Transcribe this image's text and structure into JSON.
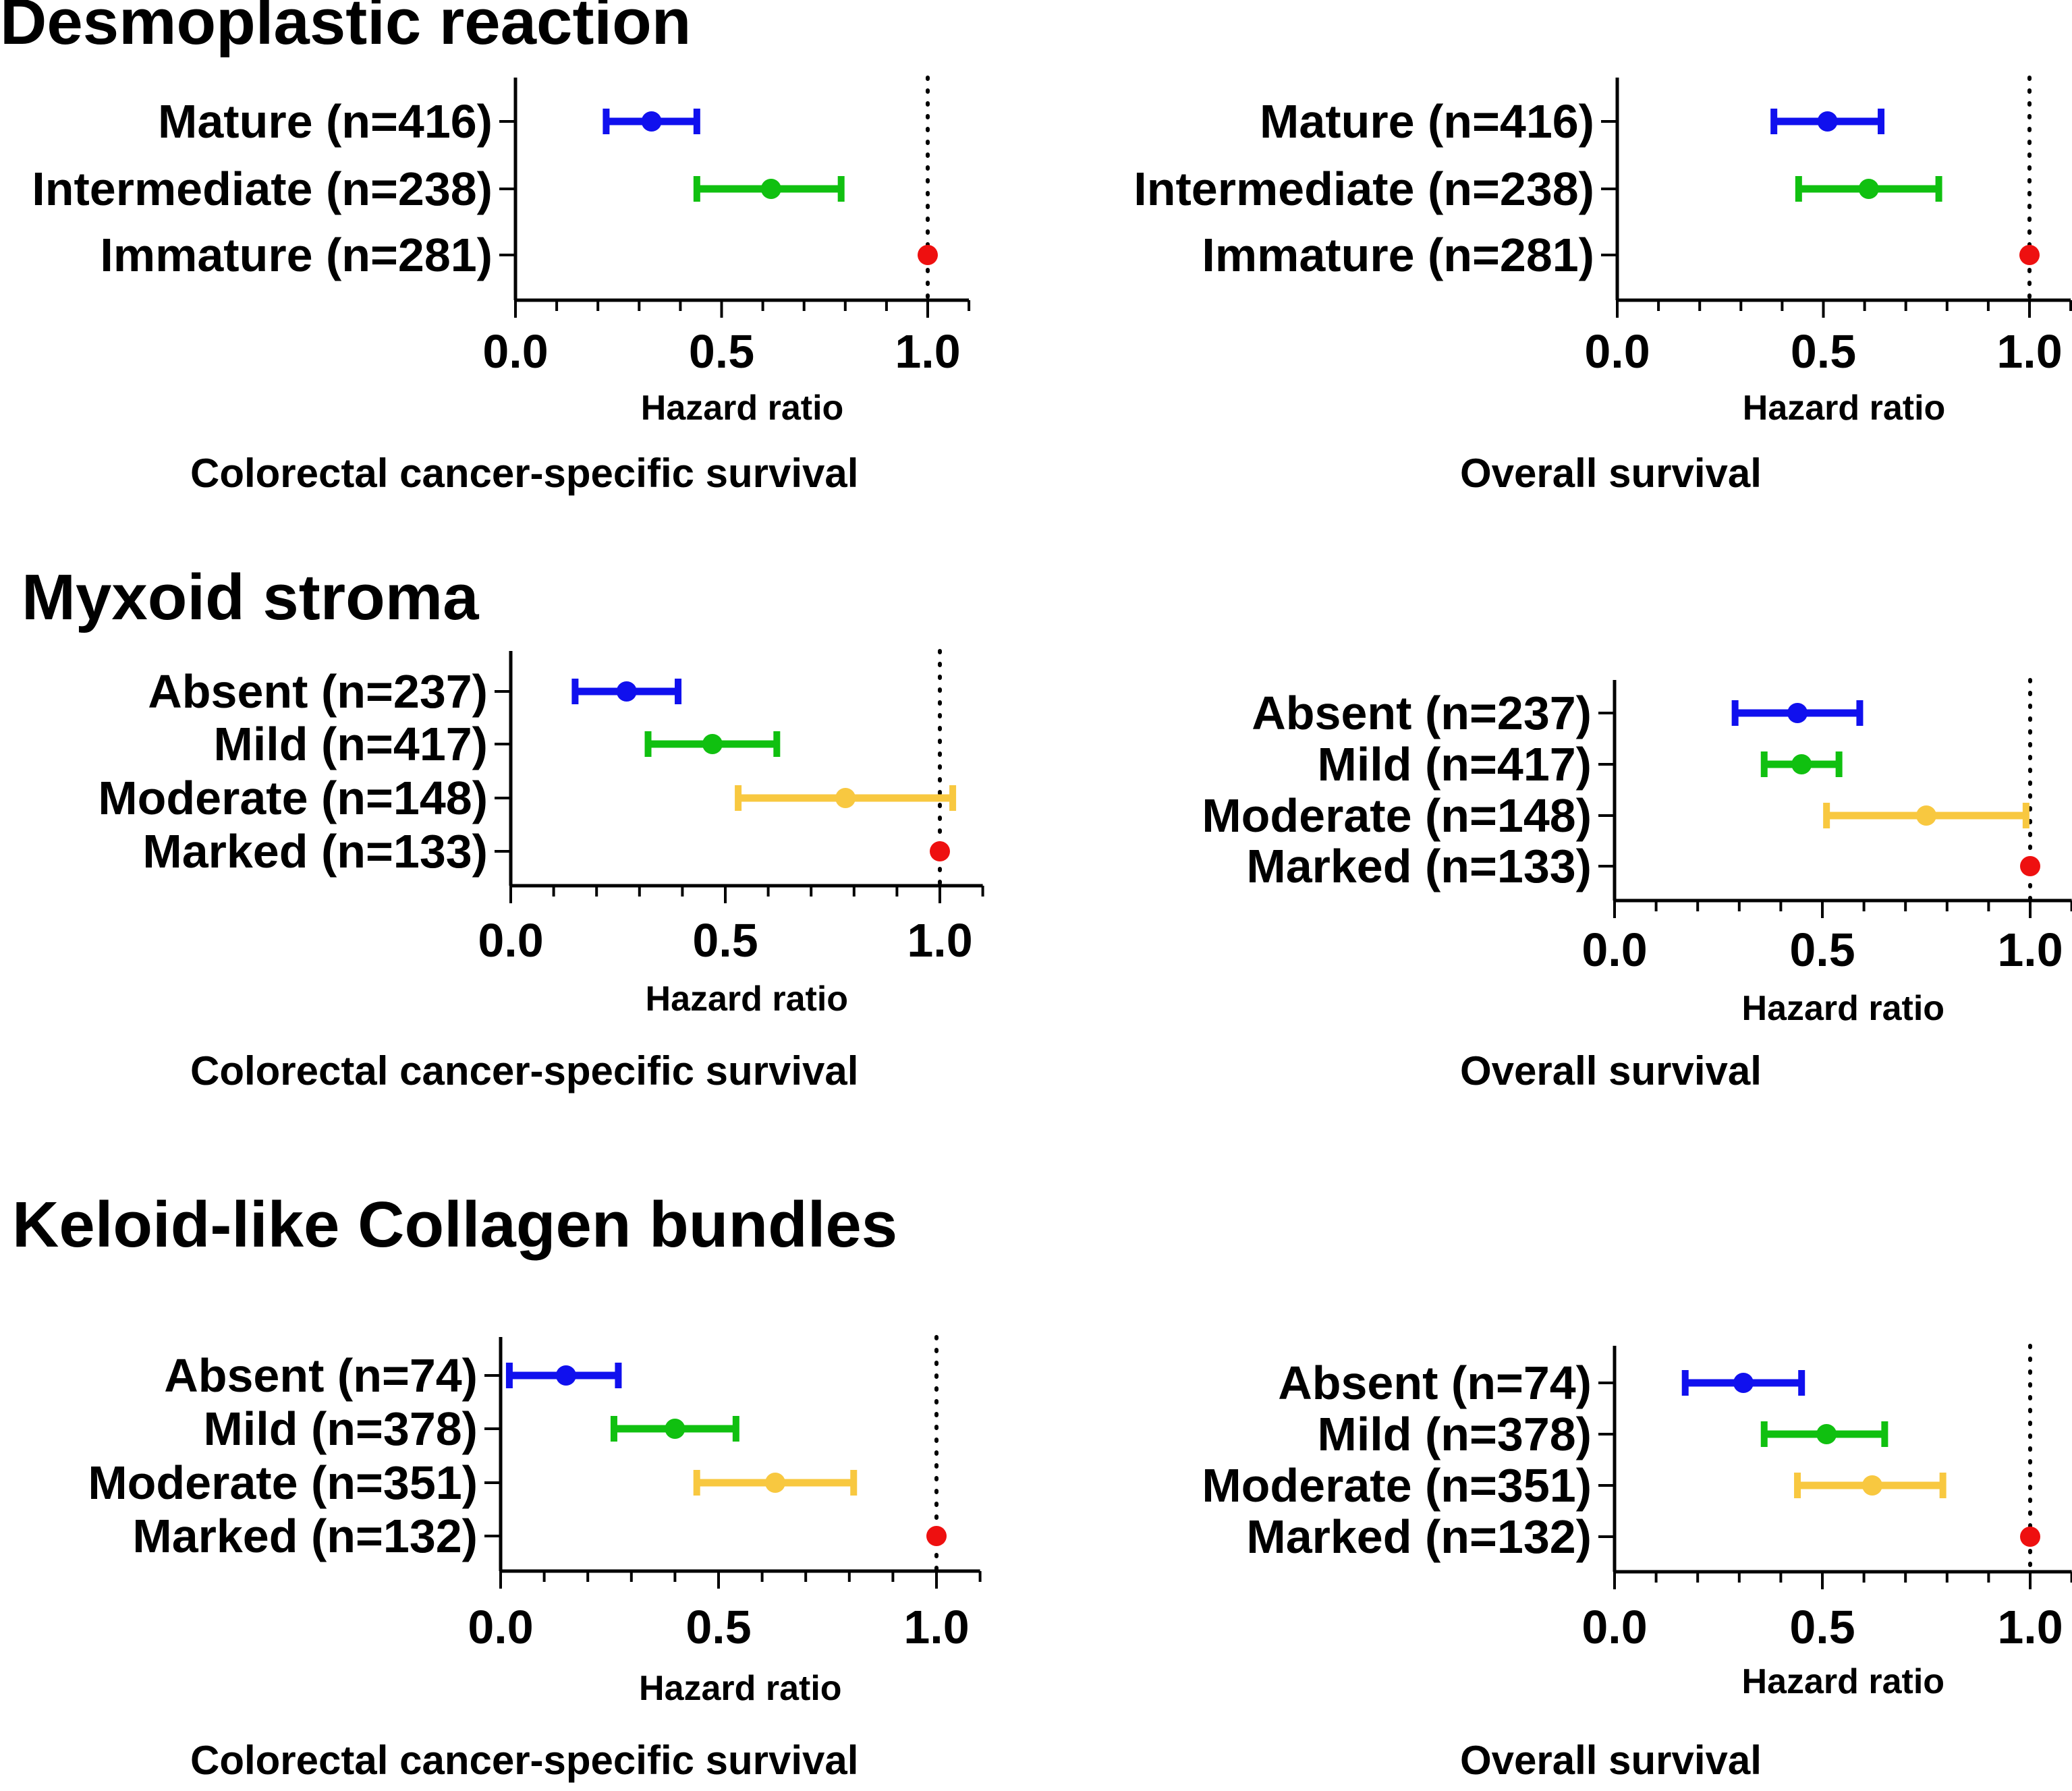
{
  "figure": {
    "colors": {
      "blue": "#1010ee",
      "green": "#10c010",
      "orange": "#f8c840",
      "red": "#ee1010"
    }
  },
  "chart_data": [
    {
      "type": "forest",
      "section_title": "Desmoplastic reaction",
      "title": "Colorectal cancer-specific survival",
      "xlabel": "Hazard ratio",
      "xlim": [
        0,
        1.1
      ],
      "xticks": [
        "0.0",
        "0.5",
        "1.0"
      ],
      "reference_line": 1.0,
      "rows": [
        {
          "label": "Mature (n=416)",
          "hr": 0.33,
          "lower": 0.22,
          "upper": 0.44,
          "color": "#1010ee"
        },
        {
          "label": "Intermediate (n=238)",
          "hr": 0.62,
          "lower": 0.44,
          "upper": 0.79,
          "color": "#10c010"
        },
        {
          "label": "Immature (n=281)",
          "hr": 1.0,
          "lower": null,
          "upper": null,
          "color": "#ee1010"
        }
      ]
    },
    {
      "type": "forest",
      "section_title": "",
      "title": "Overall survival",
      "xlabel": "Hazard ratio",
      "xlim": [
        0,
        1.1
      ],
      "xticks": [
        "0.0",
        "0.5",
        "1.0"
      ],
      "reference_line": 1.0,
      "rows": [
        {
          "label": "Mature (n=416)",
          "hr": 0.51,
          "lower": 0.38,
          "upper": 0.64,
          "color": "#1010ee"
        },
        {
          "label": "Intermediate (n=238)",
          "hr": 0.61,
          "lower": 0.44,
          "upper": 0.78,
          "color": "#10c010"
        },
        {
          "label": "Immature (n=281)",
          "hr": 1.0,
          "lower": null,
          "upper": null,
          "color": "#ee1010"
        }
      ]
    },
    {
      "type": "forest",
      "section_title": "Myxoid stroma",
      "title": "Colorectal cancer-specific survival",
      "xlabel": "Hazard ratio",
      "xlim": [
        0,
        1.1
      ],
      "xticks": [
        "0.0",
        "0.5",
        "1.0"
      ],
      "reference_line": 1.0,
      "rows": [
        {
          "label": "Absent (n=237)",
          "hr": 0.27,
          "lower": 0.15,
          "upper": 0.39,
          "color": "#1010ee"
        },
        {
          "label": "Mild (n=417)",
          "hr": 0.47,
          "lower": 0.32,
          "upper": 0.62,
          "color": "#10c010"
        },
        {
          "label": "Moderate (n=148)",
          "hr": 0.78,
          "lower": 0.53,
          "upper": 1.03,
          "color": "#f8c840"
        },
        {
          "label": "Marked (n=133)",
          "hr": 1.0,
          "lower": null,
          "upper": null,
          "color": "#ee1010"
        }
      ]
    },
    {
      "type": "forest",
      "section_title": "",
      "title": "Overall survival",
      "xlabel": "Hazard ratio",
      "xlim": [
        0,
        1.1
      ],
      "xticks": [
        "0.0",
        "0.5",
        "1.0"
      ],
      "reference_line": 1.0,
      "rows": [
        {
          "label": "Absent (n=237)",
          "hr": 0.44,
          "lower": 0.29,
          "upper": 0.59,
          "color": "#1010ee"
        },
        {
          "label": "Mild (n=417)",
          "hr": 0.45,
          "lower": 0.36,
          "upper": 0.54,
          "color": "#10c010"
        },
        {
          "label": "Moderate (n=148)",
          "hr": 0.75,
          "lower": 0.51,
          "upper": 0.99,
          "color": "#f8c840"
        },
        {
          "label": "Marked (n=133)",
          "hr": 1.0,
          "lower": null,
          "upper": null,
          "color": "#ee1010"
        }
      ]
    },
    {
      "type": "forest",
      "section_title": "Keloid-like Collagen bundles",
      "title": "Colorectal cancer-specific survival",
      "xlabel": "Hazard ratio",
      "xlim": [
        0,
        1.1
      ],
      "xticks": [
        "0.0",
        "0.5",
        "1.0"
      ],
      "reference_line": 1.0,
      "rows": [
        {
          "label": "Absent (n=74)",
          "hr": 0.15,
          "lower": 0.02,
          "upper": 0.27,
          "color": "#1010ee"
        },
        {
          "label": "Mild (n=378)",
          "hr": 0.4,
          "lower": 0.26,
          "upper": 0.54,
          "color": "#10c010"
        },
        {
          "label": "Moderate (n=351)",
          "hr": 0.63,
          "lower": 0.45,
          "upper": 0.81,
          "color": "#f8c840"
        },
        {
          "label": "Marked (n=132)",
          "hr": 1.0,
          "lower": null,
          "upper": null,
          "color": "#ee1010"
        }
      ]
    },
    {
      "type": "forest",
      "section_title": "",
      "title": "Overall survival",
      "xlabel": "Hazard ratio",
      "xlim": [
        0,
        1.1
      ],
      "xticks": [
        "0.0",
        "0.5",
        "1.0"
      ],
      "reference_line": 1.0,
      "rows": [
        {
          "label": "Absent (n=74)",
          "hr": 0.31,
          "lower": 0.17,
          "upper": 0.45,
          "color": "#1010ee"
        },
        {
          "label": "Mild (n=378)",
          "hr": 0.51,
          "lower": 0.36,
          "upper": 0.65,
          "color": "#10c010"
        },
        {
          "label": "Moderate (n=351)",
          "hr": 0.62,
          "lower": 0.44,
          "upper": 0.79,
          "color": "#f8c840"
        },
        {
          "label": "Marked (n=132)",
          "hr": 1.0,
          "lower": null,
          "upper": null,
          "color": "#ee1010"
        }
      ]
    }
  ]
}
